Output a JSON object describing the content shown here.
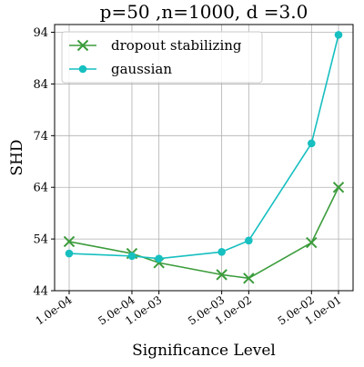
{
  "chart_data": {
    "type": "line",
    "title": "p=50 ,n=1000, d =3.0",
    "xlabel": "Significance Level",
    "ylabel": "SHD",
    "x_tick_labels": [
      "1.0e-04",
      "5.0e-04",
      "1.0e-03",
      "5.0e-03",
      "1.0e-02",
      "5.0e-02",
      "1.0e-01"
    ],
    "x_values": [
      0.0001,
      0.0005,
      0.001,
      0.005,
      0.01,
      0.05,
      0.1
    ],
    "x_scale": "log",
    "y_ticks": [
      44,
      54,
      64,
      74,
      84,
      94
    ],
    "ylim": [
      44,
      95.5
    ],
    "grid": true,
    "legend_position": "top-left",
    "series": [
      {
        "name": "dropout stabilizing",
        "color": "#3b9c3b",
        "marker": "x",
        "values": [
          53.5,
          51.2,
          49.4,
          47.1,
          46.4,
          53.3,
          64.0
        ]
      },
      {
        "name": "gaussian",
        "color": "#17bfc0",
        "marker": "circle",
        "values": [
          51.2,
          50.7,
          50.2,
          51.5,
          53.7,
          72.5,
          93.5
        ]
      }
    ]
  }
}
